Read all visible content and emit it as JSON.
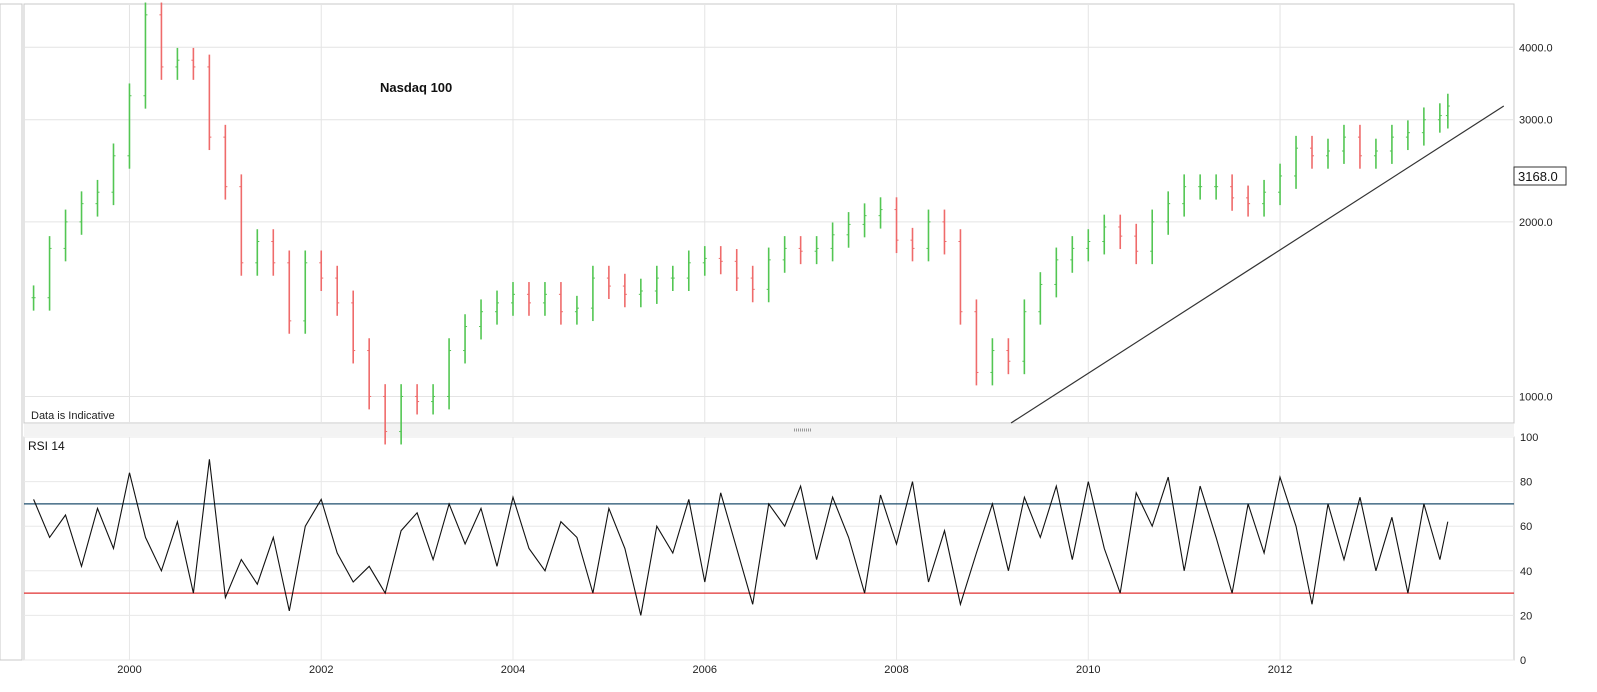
{
  "chart_data": [
    {
      "type": "ohlc",
      "title": "Nasdaq 100",
      "note": "Data is Indicative",
      "yscale": "log",
      "ylim": [
        900,
        4750
      ],
      "yticks": [
        1000,
        2000,
        3000,
        4000
      ],
      "ytick_labels": [
        "1000.0",
        "2000.0",
        "3000.0",
        "4000.0"
      ],
      "last_value": 3168.0,
      "last_value_label": "3168.0",
      "up_color": "#53c653",
      "down_color": "#ef6b6b",
      "grid": true,
      "trendline": {
        "points": [
          [
            "2008-08",
            775
          ],
          [
            "2014-05",
            3168
          ]
        ],
        "color": "#333333"
      },
      "series": [
        {
          "dates": [
            "1999-01",
            "1999-03",
            "1999-05",
            "1999-07",
            "1999-09",
            "1999-11",
            "2000-01",
            "2000-03",
            "2000-05",
            "2000-07",
            "2000-09",
            "2000-11",
            "2001-01",
            "2001-03",
            "2001-05",
            "2001-07",
            "2001-09",
            "2001-11",
            "2002-01",
            "2002-03",
            "2002-05",
            "2002-07",
            "2002-09",
            "2002-11",
            "2003-01",
            "2003-03",
            "2003-05",
            "2003-07",
            "2003-09",
            "2003-11",
            "2004-01",
            "2004-03",
            "2004-05",
            "2004-07",
            "2004-09",
            "2004-11",
            "2005-01",
            "2005-03",
            "2005-05",
            "2005-07",
            "2005-09",
            "2005-11",
            "2006-01",
            "2006-03",
            "2006-05",
            "2006-07",
            "2006-09",
            "2006-11",
            "2007-01",
            "2007-03",
            "2007-05",
            "2007-07",
            "2007-09",
            "2007-11",
            "2008-01",
            "2008-03",
            "2008-05",
            "2008-07",
            "2008-09",
            "2008-11",
            "2009-01",
            "2009-03",
            "2009-05",
            "2009-07",
            "2009-09",
            "2009-11",
            "2010-01",
            "2010-03",
            "2010-05",
            "2010-07",
            "2010-09",
            "2010-11",
            "2011-01",
            "2011-03",
            "2011-05",
            "2011-07",
            "2011-09",
            "2011-11",
            "2012-01",
            "2012-03",
            "2012-05",
            "2012-07",
            "2012-09",
            "2012-11",
            "2013-01",
            "2013-03",
            "2013-05",
            "2013-07",
            "2013-09",
            "2013-10"
          ],
          "values": [
            1480,
            1800,
            2000,
            2150,
            2250,
            2600,
            3300,
            4550,
            3700,
            3800,
            3700,
            2800,
            2300,
            1700,
            1850,
            1700,
            1350,
            1700,
            1600,
            1450,
            1200,
            1000,
            870,
            1000,
            980,
            1000,
            1200,
            1320,
            1400,
            1450,
            1500,
            1450,
            1500,
            1400,
            1420,
            1600,
            1550,
            1500,
            1520,
            1600,
            1600,
            1700,
            1730,
            1710,
            1600,
            1530,
            1720,
            1800,
            1780,
            1800,
            1900,
            1980,
            2050,
            2100,
            1860,
            1800,
            2000,
            1850,
            1400,
            1100,
            1200,
            1150,
            1400,
            1560,
            1720,
            1800,
            1850,
            1960,
            1890,
            1780,
            2000,
            2150,
            2300,
            2300,
            2300,
            2200,
            2150,
            2250,
            2400,
            2680,
            2600,
            2650,
            2800,
            2600,
            2650,
            2800,
            2850,
            3000,
            3050,
            3168
          ]
        }
      ]
    },
    {
      "type": "line",
      "title": "RSI 14",
      "ylim": [
        0,
        100
      ],
      "yticks": [
        0,
        20,
        40,
        60,
        80,
        100
      ],
      "ytick_labels": [
        "0",
        "20",
        "40",
        "60",
        "80",
        "100"
      ],
      "reference_lines": [
        {
          "value": 70,
          "color": "#1f4f6e"
        },
        {
          "value": 30,
          "color": "#e03030"
        }
      ],
      "x_ticks": [
        "2000",
        "2002",
        "2004",
        "2006",
        "2008",
        "2010",
        "2012"
      ],
      "series": [
        {
          "dates": [
            "1999-01",
            "1999-03",
            "1999-05",
            "1999-07",
            "1999-09",
            "1999-11",
            "2000-01",
            "2000-03",
            "2000-05",
            "2000-07",
            "2000-09",
            "2000-11",
            "2001-01",
            "2001-03",
            "2001-05",
            "2001-07",
            "2001-09",
            "2001-11",
            "2002-01",
            "2002-03",
            "2002-05",
            "2002-07",
            "2002-09",
            "2002-11",
            "2003-01",
            "2003-03",
            "2003-05",
            "2003-07",
            "2003-09",
            "2003-11",
            "2004-01",
            "2004-03",
            "2004-05",
            "2004-07",
            "2004-09",
            "2004-11",
            "2005-01",
            "2005-03",
            "2005-05",
            "2005-07",
            "2005-09",
            "2005-11",
            "2006-01",
            "2006-03",
            "2006-05",
            "2006-07",
            "2006-09",
            "2006-11",
            "2007-01",
            "2007-03",
            "2007-05",
            "2007-07",
            "2007-09",
            "2007-11",
            "2008-01",
            "2008-03",
            "2008-05",
            "2008-07",
            "2008-09",
            "2008-11",
            "2009-01",
            "2009-03",
            "2009-05",
            "2009-07",
            "2009-09",
            "2009-11",
            "2010-01",
            "2010-03",
            "2010-05",
            "2010-07",
            "2010-09",
            "2010-11",
            "2011-01",
            "2011-03",
            "2011-05",
            "2011-07",
            "2011-09",
            "2011-11",
            "2012-01",
            "2012-03",
            "2012-05",
            "2012-07",
            "2012-09",
            "2012-11",
            "2013-01",
            "2013-03",
            "2013-05",
            "2013-07",
            "2013-09",
            "2013-10"
          ],
          "values": [
            72,
            55,
            65,
            42,
            68,
            50,
            84,
            55,
            40,
            62,
            30,
            90,
            28,
            45,
            34,
            55,
            22,
            60,
            72,
            48,
            35,
            42,
            30,
            58,
            66,
            45,
            70,
            52,
            68,
            42,
            73,
            50,
            40,
            62,
            55,
            30,
            68,
            50,
            20,
            60,
            48,
            72,
            35,
            75,
            50,
            25,
            70,
            60,
            78,
            45,
            73,
            55,
            30,
            74,
            52,
            80,
            35,
            58,
            25,
            48,
            70,
            40,
            73,
            55,
            78,
            45,
            80,
            50,
            30,
            75,
            60,
            82,
            40,
            78,
            55,
            30,
            70,
            48,
            82,
            60,
            25,
            70,
            45,
            73,
            40,
            64,
            30,
            70,
            45,
            62
          ]
        }
      ]
    }
  ]
}
